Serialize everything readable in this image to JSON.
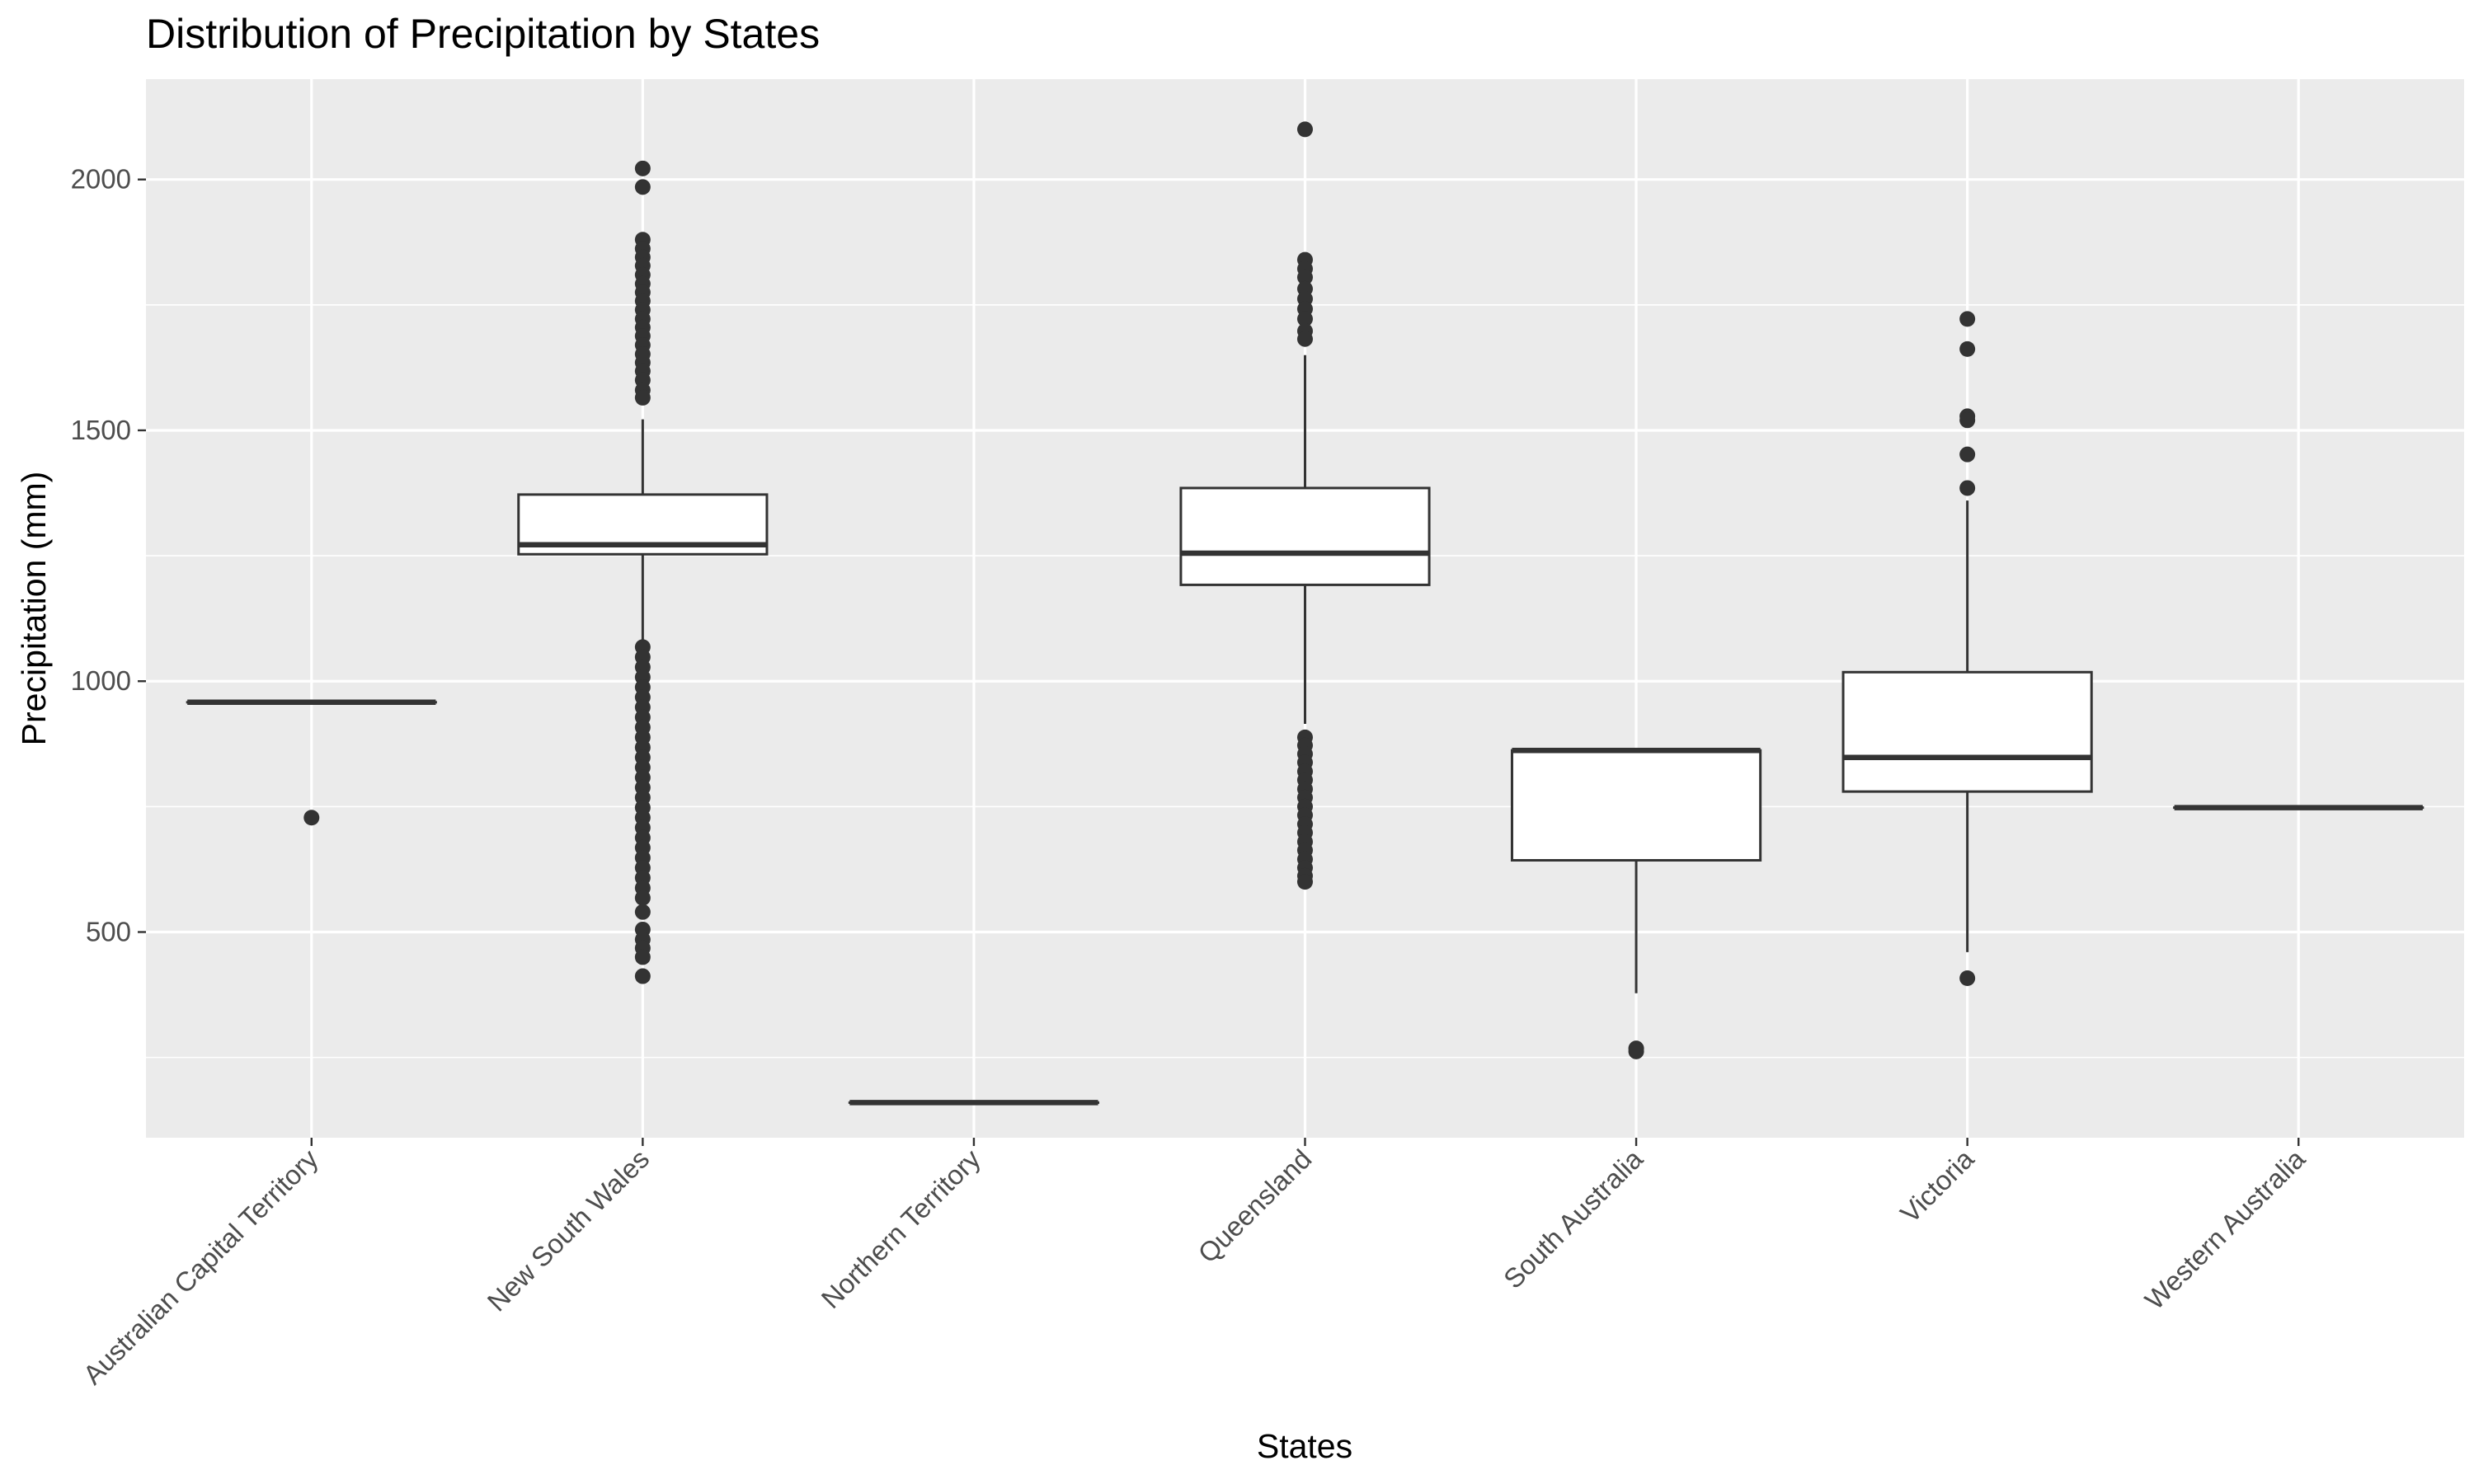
{
  "chart_data": {
    "type": "boxplot",
    "title": "Distribution of Precipitation by States",
    "xlabel": "States",
    "ylabel": "Precipitation (mm)",
    "ylim": [
      90,
      2200
    ],
    "yticks": [
      500,
      1000,
      1500,
      2000
    ],
    "grid": true,
    "categories": [
      "Australian Capital Territory",
      "New South Wales",
      "Northern Territory",
      "Queensland",
      "South Australia",
      "Victoria",
      "Western Australia"
    ],
    "boxes": [
      {
        "category": "Australian Capital Territory",
        "q1": 958,
        "median": 958,
        "q3": 958,
        "whisker_low": 958,
        "whisker_high": 958,
        "outliers": [
          728
        ]
      },
      {
        "category": "New South Wales",
        "q1": 1253,
        "median": 1272,
        "q3": 1372,
        "whisker_low": 1075,
        "whisker_high": 1522,
        "outliers": [
          2022,
          1985,
          1880,
          1862,
          1845,
          1828,
          1810,
          1792,
          1775,
          1758,
          1740,
          1722,
          1705,
          1688,
          1670,
          1652,
          1635,
          1618,
          1600,
          1580,
          1565,
          1068,
          1048,
          1028,
          1008,
          988,
          968,
          948,
          928,
          908,
          888,
          868,
          848,
          828,
          808,
          788,
          768,
          748,
          728,
          708,
          688,
          668,
          648,
          628,
          608,
          588,
          568,
          540,
          505,
          485,
          468,
          450,
          412
        ]
      },
      {
        "category": "Northern Territory",
        "q1": 160,
        "median": 160,
        "q3": 160,
        "whisker_low": 160,
        "whisker_high": 160,
        "outliers": []
      },
      {
        "category": "Queensland",
        "q1": 1192,
        "median": 1255,
        "q3": 1385,
        "whisker_low": 915,
        "whisker_high": 1650,
        "outliers": [
          2100,
          1840,
          1822,
          1805,
          1782,
          1762,
          1742,
          1722,
          1698,
          1682,
          888,
          872,
          855,
          838,
          820,
          803,
          785,
          768,
          750,
          733,
          715,
          698,
          680,
          663,
          645,
          628,
          612,
          600
        ]
      },
      {
        "category": "South Australia",
        "q1": 643,
        "median": 862,
        "q3": 862,
        "whisker_low": 378,
        "whisker_high": 862,
        "outliers": [
          268,
          262
        ]
      },
      {
        "category": "Victoria",
        "q1": 780,
        "median": 848,
        "q3": 1018,
        "whisker_low": 460,
        "whisker_high": 1360,
        "outliers": [
          1722,
          1662,
          1528,
          1520,
          1452,
          1385,
          408
        ]
      },
      {
        "category": "Western Australia",
        "q1": 748,
        "median": 748,
        "q3": 748,
        "whisker_low": 748,
        "whisker_high": 748,
        "outliers": []
      }
    ],
    "colors": {
      "panel": "#ebebeb",
      "grid": "#ffffff",
      "box_fill": "#ffffff",
      "box_line": "#333333",
      "point": "#333333",
      "tick": "#333333"
    }
  }
}
